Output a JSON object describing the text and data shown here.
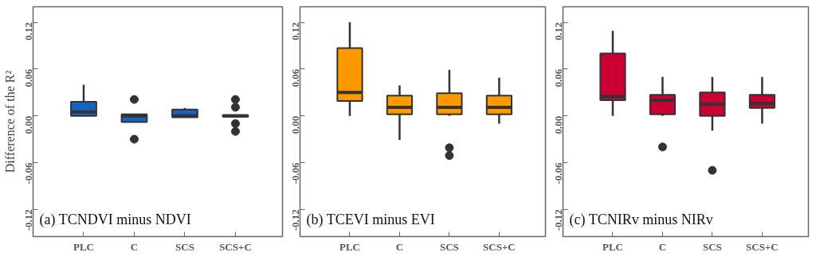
{
  "chart_data": [
    {
      "type": "box",
      "ylabel": "Difference of the R²",
      "annotations": [
        "(a) TCNDVI minus NDVI"
      ],
      "categories": [
        "PLC",
        "C",
        "SCS",
        "SCS+C"
      ],
      "ylim": [
        -0.155,
        0.14
      ],
      "yticks": [
        {
          "value": -0.12,
          "label": "-0.12"
        },
        {
          "value": -0.06,
          "label": "-0.06"
        },
        {
          "value": 0,
          "label": "0.00"
        },
        {
          "value": 0.06,
          "label": "0.06"
        },
        {
          "value": 0.12,
          "label": "0.12"
        }
      ],
      "grid": false,
      "series": [
        {
          "color": "#1565c0",
          "boxes": [
            {
              "low": 0,
              "q1": 0,
              "median": 0.005,
              "q3": 0.018,
              "high": 0.04
            },
            {
              "low": -0.008,
              "q1": -0.008,
              "median": 0.0,
              "q3": 0.002,
              "high": 0.002,
              "outliers": [
                0.021,
                -0.03
              ]
            },
            {
              "low": -0.002,
              "q1": -0.002,
              "median": 0.0,
              "q3": 0.008,
              "high": 0.01
            },
            {
              "low": -0.001,
              "q1": -0.001,
              "median": 0,
              "q3": 0.001,
              "high": 0.001,
              "outliers": [
                0.021,
                0.011,
                -0.01,
                -0.02
              ]
            }
          ]
        }
      ]
    },
    {
      "type": "box",
      "annotations": [
        "(b) TCEVI minus EVI"
      ],
      "categories": [
        "PLC",
        "C",
        "SCS",
        "SCS+C"
      ],
      "ylim": [
        -0.155,
        0.14
      ],
      "yticks": [
        {
          "value": -0.12,
          "label": "-0.12"
        },
        {
          "value": -0.06,
          "label": "-0.06"
        },
        {
          "value": 0,
          "label": "0.00"
        },
        {
          "value": 0.06,
          "label": "0.06"
        },
        {
          "value": 0.12,
          "label": "0.12"
        }
      ],
      "grid": false,
      "series": [
        {
          "color": "#ff9900",
          "boxes": [
            {
              "low": 0,
              "q1": 0.019,
              "median": 0.03,
              "q3": 0.087,
              "high": 0.12
            },
            {
              "low": -0.031,
              "q1": 0.002,
              "median": 0.011,
              "q3": 0.026,
              "high": 0.039
            },
            {
              "low": 0,
              "q1": 0.002,
              "median": 0.011,
              "q3": 0.029,
              "high": 0.059,
              "outliers": [
                -0.041,
                -0.051
              ]
            },
            {
              "low": -0.01,
              "q1": 0.002,
              "median": 0.011,
              "q3": 0.026,
              "high": 0.049
            }
          ]
        }
      ]
    },
    {
      "type": "box",
      "annotations": [
        "(c) TCNIRv minus NIRv"
      ],
      "categories": [
        "PLC",
        "C",
        "SCS",
        "SCS+C"
      ],
      "ylim": [
        -0.155,
        0.14
      ],
      "yticks": [
        {
          "value": -0.12,
          "label": "-0.12"
        },
        {
          "value": -0.06,
          "label": "-0.06"
        },
        {
          "value": 0,
          "label": "0.00"
        },
        {
          "value": 0.06,
          "label": "0.06"
        },
        {
          "value": 0.12,
          "label": "0.12"
        }
      ],
      "grid": false,
      "series": [
        {
          "color": "#cc0033",
          "boxes": [
            {
              "low": 0,
              "q1": 0.02,
              "median": 0.025,
              "q3": 0.08,
              "high": 0.109
            },
            {
              "low": 0,
              "q1": 0.002,
              "median": 0.02,
              "q3": 0.027,
              "high": 0.05,
              "outliers": [
                -0.04
              ]
            },
            {
              "low": -0.019,
              "q1": 0,
              "median": 0.015,
              "q3": 0.03,
              "high": 0.05,
              "outliers": [
                -0.07
              ]
            },
            {
              "low": -0.01,
              "q1": 0.01,
              "median": 0.016,
              "q3": 0.027,
              "high": 0.05
            }
          ]
        }
      ]
    }
  ]
}
